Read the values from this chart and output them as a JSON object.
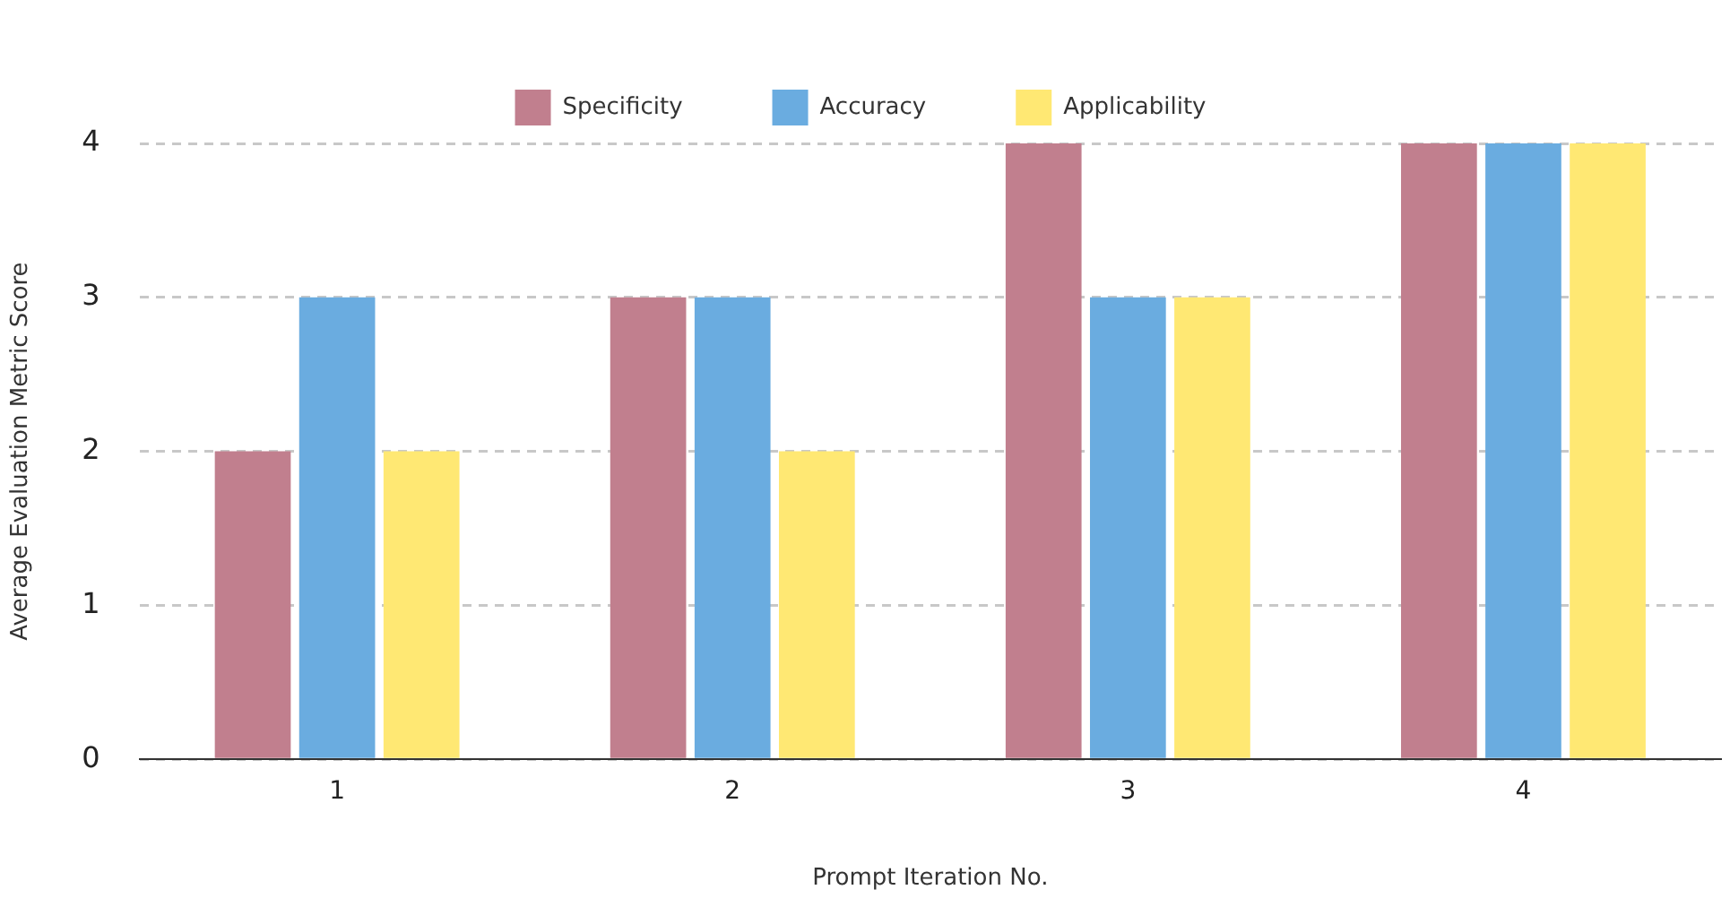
{
  "chart_data": {
    "type": "bar",
    "xlabel": "Prompt Iteration No.",
    "ylabel": "Average Evaluation Metric Score",
    "categories": [
      "1",
      "2",
      "3",
      "4"
    ],
    "series": [
      {
        "name": "Specificity",
        "color": "#c17f8e",
        "values": [
          2,
          3,
          4,
          4
        ]
      },
      {
        "name": "Accuracy",
        "color": "#6aace0",
        "values": [
          3,
          3,
          3,
          4
        ]
      },
      {
        "name": "Applicability",
        "color": "#ffe873",
        "values": [
          2,
          2,
          3,
          4
        ]
      }
    ],
    "ylim": [
      0,
      4
    ],
    "yticks": [
      0,
      1,
      2,
      3,
      4
    ],
    "grid": "y",
    "legend": "top"
  }
}
